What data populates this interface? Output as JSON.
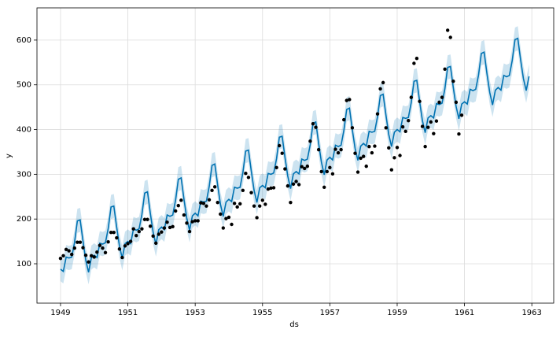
{
  "chart_data": {
    "type": "line",
    "x_label": "ds",
    "y_label": "y",
    "xlim": [
      1948.3,
      1963.65
    ],
    "ylim": [
      12,
      672
    ],
    "xticks": [
      1949,
      1951,
      1953,
      1955,
      1957,
      1959,
      1961,
      1963
    ],
    "yticks": [
      100,
      200,
      300,
      400,
      500,
      600
    ],
    "grid": true,
    "color": "#0072b2",
    "point_color": "#000000",
    "band_opacity": 0.2,
    "x": [
      1949,
      1949.083,
      1949.167,
      1949.25,
      1949.333,
      1949.417,
      1949.5,
      1949.583,
      1949.667,
      1949.75,
      1949.833,
      1949.917,
      1950,
      1950.083,
      1950.167,
      1950.25,
      1950.333,
      1950.417,
      1950.5,
      1950.583,
      1950.667,
      1950.75,
      1950.833,
      1950.917,
      1951,
      1951.083,
      1951.167,
      1951.25,
      1951.333,
      1951.417,
      1951.5,
      1951.583,
      1951.667,
      1951.75,
      1951.833,
      1951.917,
      1952,
      1952.083,
      1952.167,
      1952.25,
      1952.333,
      1952.417,
      1952.5,
      1952.583,
      1952.667,
      1952.75,
      1952.833,
      1952.917,
      1953,
      1953.083,
      1953.167,
      1953.25,
      1953.333,
      1953.417,
      1953.5,
      1953.583,
      1953.667,
      1953.75,
      1953.833,
      1953.917,
      1954,
      1954.083,
      1954.167,
      1954.25,
      1954.333,
      1954.417,
      1954.5,
      1954.583,
      1954.667,
      1954.75,
      1954.833,
      1954.917,
      1955,
      1955.083,
      1955.167,
      1955.25,
      1955.333,
      1955.417,
      1955.5,
      1955.583,
      1955.667,
      1955.75,
      1955.833,
      1955.917,
      1956,
      1956.083,
      1956.167,
      1956.25,
      1956.333,
      1956.417,
      1956.5,
      1956.583,
      1956.667,
      1956.75,
      1956.833,
      1956.917,
      1957,
      1957.083,
      1957.167,
      1957.25,
      1957.333,
      1957.417,
      1957.5,
      1957.583,
      1957.667,
      1957.75,
      1957.833,
      1957.917,
      1958,
      1958.083,
      1958.167,
      1958.25,
      1958.333,
      1958.417,
      1958.5,
      1958.583,
      1958.667,
      1958.75,
      1958.833,
      1958.917,
      1959,
      1959.083,
      1959.167,
      1959.25,
      1959.333,
      1959.417,
      1959.5,
      1959.583,
      1959.667,
      1959.75,
      1959.833,
      1959.917,
      1960,
      1960.083,
      1960.167,
      1960.25,
      1960.333,
      1960.417,
      1960.5,
      1960.583,
      1960.667,
      1960.75,
      1960.833,
      1960.917,
      1961,
      1961.083,
      1961.167,
      1961.25,
      1961.333,
      1961.417,
      1961.5,
      1961.583,
      1961.667,
      1961.75,
      1961.833,
      1961.917,
      1962,
      1962.083,
      1962.167,
      1962.25,
      1962.333,
      1962.417,
      1962.5,
      1962.583,
      1962.667,
      1962.75,
      1962.833,
      1962.917
    ],
    "values": [
      112,
      118,
      132,
      129,
      121,
      135,
      148,
      148,
      136,
      119,
      104,
      118,
      115,
      126,
      141,
      135,
      125,
      149,
      170,
      170,
      158,
      133,
      114,
      140,
      145,
      150,
      178,
      163,
      172,
      178,
      199,
      199,
      184,
      162,
      146,
      166,
      171,
      180,
      193,
      181,
      183,
      218,
      230,
      242,
      209,
      191,
      172,
      194,
      196,
      196,
      236,
      235,
      229,
      243,
      264,
      272,
      237,
      211,
      180,
      201,
      204,
      188,
      235,
      227,
      234,
      264,
      302,
      293,
      259,
      229,
      203,
      229,
      242,
      233,
      267,
      269,
      270,
      315,
      364,
      347,
      312,
      274,
      237,
      278,
      284,
      277,
      317,
      313,
      318,
      374,
      413,
      405,
      355,
      306,
      271,
      306,
      315,
      301,
      356,
      348,
      355,
      422,
      465,
      467,
      404,
      347,
      305,
      336,
      340,
      318,
      362,
      348,
      363,
      435,
      491,
      505,
      404,
      359,
      310,
      337,
      360,
      342,
      406,
      396,
      420,
      472,
      548,
      559,
      463,
      407,
      362,
      405,
      417,
      391,
      419,
      461,
      472,
      535,
      622,
      606,
      508,
      461,
      390,
      432,
      null,
      null,
      null,
      null,
      null,
      null,
      null,
      null,
      null,
      null,
      null,
      null,
      null,
      null,
      null,
      null,
      null,
      null,
      null,
      null,
      null,
      null,
      null,
      null
    ],
    "yhat": [
      88,
      83,
      115,
      113,
      115,
      148,
      196,
      198,
      151,
      108,
      81,
      114,
      119,
      114,
      146,
      144,
      147,
      179,
      227,
      229,
      182,
      140,
      112,
      145,
      150,
      145,
      178,
      175,
      178,
      210,
      258,
      261,
      213,
      171,
      143,
      176,
      182,
      176,
      209,
      206,
      209,
      242,
      289,
      292,
      244,
      202,
      175,
      207,
      213,
      207,
      240,
      238,
      240,
      273,
      320,
      323,
      276,
      233,
      206,
      238,
      244,
      239,
      271,
      269,
      271,
      304,
      352,
      354,
      307,
      264,
      237,
      270,
      275,
      270,
      302,
      300,
      303,
      335,
      383,
      385,
      338,
      296,
      268,
      301,
      306,
      301,
      334,
      331,
      334,
      366,
      414,
      417,
      369,
      327,
      299,
      332,
      338,
      332,
      365,
      362,
      365,
      398,
      445,
      448,
      400,
      358,
      331,
      363,
      369,
      363,
      396,
      394,
      396,
      429,
      476,
      479,
      432,
      389,
      362,
      394,
      400,
      395,
      427,
      425,
      427,
      460,
      508,
      510,
      463,
      420,
      393,
      426,
      431,
      426,
      458,
      456,
      459,
      491,
      539,
      541,
      494,
      452,
      424,
      457,
      462,
      457,
      490,
      487,
      490,
      522,
      570,
      573,
      525,
      483,
      455,
      488,
      494,
      488,
      521,
      518,
      521,
      554,
      601,
      604,
      556,
      514,
      487,
      519
    ],
    "yhat_lower": [
      61,
      56,
      88,
      86,
      88,
      121,
      169,
      171,
      124,
      81,
      54,
      87,
      92,
      87,
      119,
      117,
      120,
      152,
      200,
      202,
      155,
      113,
      85,
      118,
      123,
      118,
      151,
      148,
      151,
      183,
      231,
      234,
      186,
      144,
      116,
      149,
      155,
      149,
      182,
      179,
      182,
      215,
      262,
      265,
      217,
      175,
      148,
      180,
      186,
      180,
      213,
      211,
      213,
      246,
      293,
      296,
      249,
      206,
      179,
      211,
      217,
      212,
      244,
      242,
      244,
      277,
      325,
      327,
      280,
      237,
      210,
      243,
      248,
      243,
      275,
      273,
      276,
      308,
      356,
      358,
      311,
      269,
      241,
      274,
      279,
      274,
      307,
      304,
      307,
      339,
      387,
      390,
      342,
      300,
      272,
      305,
      311,
      305,
      338,
      335,
      338,
      371,
      418,
      421,
      373,
      331,
      304,
      336,
      342,
      336,
      369,
      367,
      369,
      402,
      449,
      452,
      405,
      362,
      335,
      367,
      373,
      368,
      400,
      398,
      400,
      433,
      481,
      483,
      436,
      393,
      366,
      399,
      404,
      399,
      431,
      429,
      432,
      464,
      512,
      514,
      467,
      425,
      397,
      430,
      435,
      430,
      463,
      460,
      463,
      495,
      543,
      546,
      498,
      456,
      428,
      461,
      467,
      461,
      494,
      491,
      494,
      527,
      574,
      577,
      529,
      487,
      460,
      492
    ],
    "yhat_upper": [
      115,
      110,
      142,
      140,
      142,
      175,
      223,
      225,
      178,
      135,
      108,
      141,
      146,
      141,
      173,
      171,
      174,
      206,
      254,
      256,
      209,
      167,
      139,
      172,
      177,
      172,
      205,
      202,
      205,
      237,
      285,
      288,
      240,
      198,
      170,
      203,
      209,
      203,
      236,
      233,
      236,
      269,
      316,
      319,
      271,
      229,
      202,
      234,
      240,
      234,
      267,
      265,
      267,
      300,
      347,
      350,
      303,
      260,
      233,
      265,
      271,
      266,
      298,
      296,
      298,
      331,
      379,
      381,
      334,
      291,
      264,
      297,
      302,
      297,
      329,
      327,
      330,
      362,
      410,
      412,
      365,
      323,
      295,
      328,
      333,
      328,
      361,
      358,
      361,
      393,
      441,
      444,
      396,
      354,
      326,
      359,
      365,
      359,
      392,
      389,
      392,
      425,
      472,
      475,
      427,
      385,
      358,
      390,
      396,
      390,
      423,
      421,
      423,
      456,
      503,
      506,
      459,
      416,
      389,
      421,
      427,
      422,
      454,
      452,
      454,
      487,
      535,
      537,
      490,
      447,
      420,
      453,
      458,
      453,
      485,
      483,
      486,
      518,
      566,
      568,
      521,
      479,
      451,
      484,
      489,
      484,
      517,
      514,
      517,
      549,
      597,
      600,
      552,
      510,
      482,
      515,
      521,
      515,
      548,
      545,
      548,
      581,
      628,
      631,
      583,
      541,
      514,
      546
    ]
  }
}
